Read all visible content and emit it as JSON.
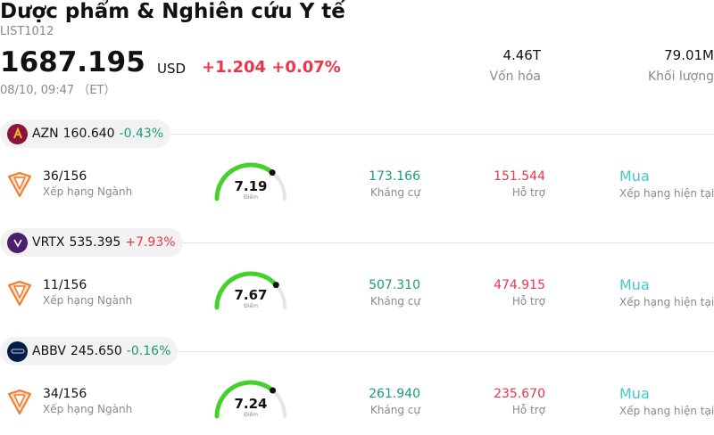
{
  "header": {
    "title": "Dược phẩm & Nghiên cứu Y tế",
    "code": "LIST1012",
    "price": "1687.195",
    "currency": "USD",
    "change": "+1.204 +0.07%",
    "datetime": "08/10, 09:47 （ET）",
    "market_cap_value": "4.46T",
    "market_cap_label": "Vốn hóa",
    "volume_value": "79.01M",
    "volume_label": "Khối lượng"
  },
  "colors": {
    "up": "#e8374a",
    "down": "#1a9b7a",
    "gauge": "#43d12a",
    "rating": "#43c9c4"
  },
  "stocks": [
    {
      "symbol": "AZN",
      "price": "160.640",
      "change_pct": "-0.43%",
      "direction": "down",
      "logo_icon": "astrazeneca-logo-icon",
      "rank": "36/156",
      "rank_label": "Xếp hạng Ngành",
      "score": "7.19",
      "score_value": 7.19,
      "score_label": "Điểm",
      "resistance": "173.166",
      "resistance_label": "Kháng cự",
      "support": "151.544",
      "support_label": "Hỗ trợ",
      "rating": "Mua",
      "rating_label": "Xếp hạng hiện tại"
    },
    {
      "symbol": "VRTX",
      "price": "535.395",
      "change_pct": "+7.93%",
      "direction": "up",
      "logo_icon": "vertex-logo-icon",
      "rank": "11/156",
      "rank_label": "Xếp hạng Ngành",
      "score": "7.67",
      "score_value": 7.67,
      "score_label": "Điểm",
      "resistance": "507.310",
      "resistance_label": "Kháng cự",
      "support": "474.915",
      "support_label": "Hỗ trợ",
      "rating": "Mua",
      "rating_label": "Xếp hạng hiện tại"
    },
    {
      "symbol": "ABBV",
      "price": "245.650",
      "change_pct": "-0.16%",
      "direction": "down",
      "logo_icon": "abbvie-logo-icon",
      "rank": "34/156",
      "rank_label": "Xếp hạng Ngành",
      "score": "7.24",
      "score_value": 7.24,
      "score_label": "Điểm",
      "resistance": "261.940",
      "resistance_label": "Kháng cự",
      "support": "235.670",
      "support_label": "Hỗ trợ",
      "rating": "Mua",
      "rating_label": "Xếp hạng hiện tại"
    }
  ]
}
